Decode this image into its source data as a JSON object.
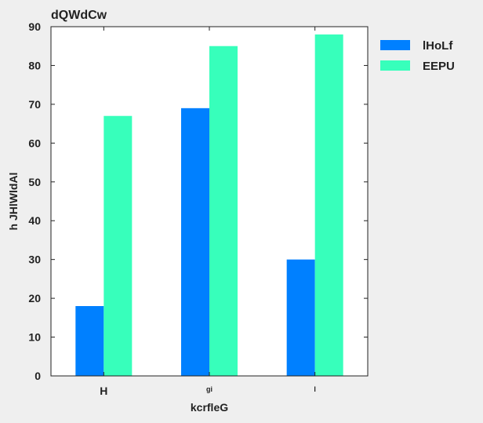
{
  "chart_data": {
    "type": "bar",
    "title": "dQWdCw",
    "xlabel": "kcrfleG",
    "ylabel": "h JHlWldAl",
    "categories": [
      "H",
      "gi",
      "l"
    ],
    "series": [
      {
        "name": "lHoLf",
        "values": [
          18,
          69,
          30
        ],
        "color": "#0080ff"
      },
      {
        "name": "EEPU",
        "values": [
          67,
          85,
          88
        ],
        "color": "#37ffbb"
      }
    ],
    "ylim": [
      0,
      90
    ],
    "yticks": [
      0,
      10,
      20,
      30,
      40,
      50,
      60,
      70,
      80,
      90
    ],
    "grid": false,
    "legend_position": "outside-right"
  }
}
